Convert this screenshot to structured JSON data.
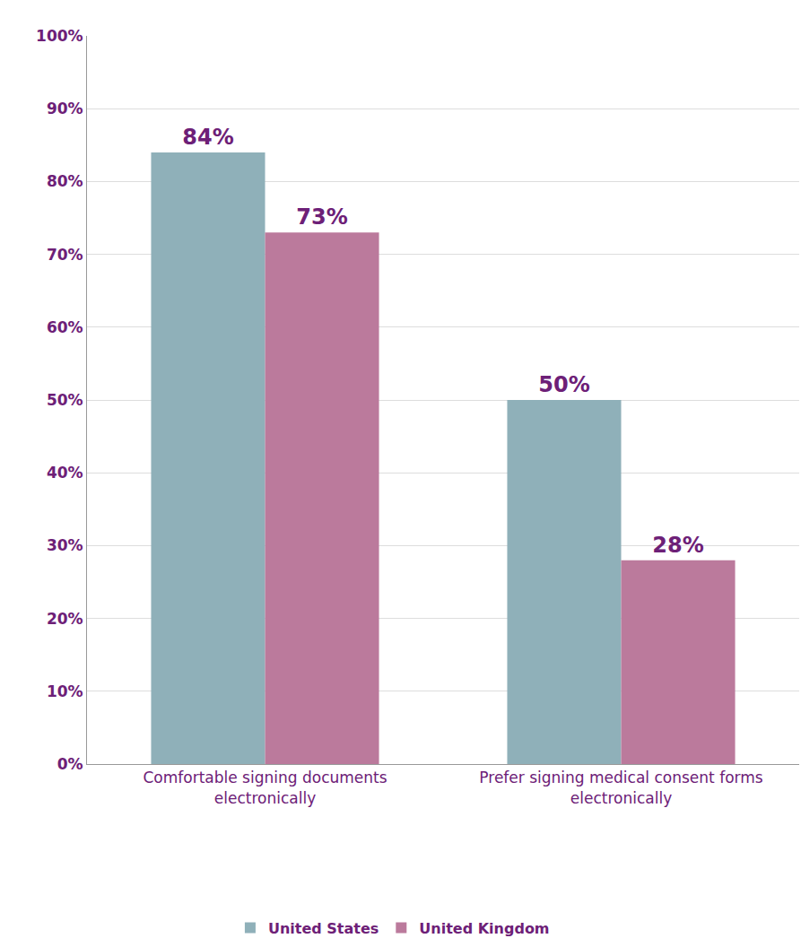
{
  "chart_data": {
    "type": "bar",
    "categories": [
      "Comfortable signing documents electronically",
      "Prefer signing medical consent forms electronically"
    ],
    "series": [
      {
        "name": "United States",
        "color": "#8fb0b9",
        "values": [
          84,
          50
        ],
        "value_labels": [
          "84%",
          "50%"
        ]
      },
      {
        "name": "United Kingdom",
        "color": "#bb7a9c",
        "values": [
          73,
          28
        ],
        "value_labels": [
          "73%",
          "28%"
        ]
      }
    ],
    "ylim": [
      0,
      100
    ],
    "yticks": [
      {
        "value": 0,
        "label": "0%"
      },
      {
        "value": 10,
        "label": "10%"
      },
      {
        "value": 20,
        "label": "20%"
      },
      {
        "value": 30,
        "label": "30%"
      },
      {
        "value": 40,
        "label": "40%"
      },
      {
        "value": 50,
        "label": "50%"
      },
      {
        "value": 60,
        "label": "60%"
      },
      {
        "value": 70,
        "label": "70%"
      },
      {
        "value": 80,
        "label": "80%"
      },
      {
        "value": 90,
        "label": "90%"
      },
      {
        "value": 100,
        "label": "100%"
      }
    ],
    "grid": true,
    "data_labels": true,
    "legend": "bottom"
  }
}
